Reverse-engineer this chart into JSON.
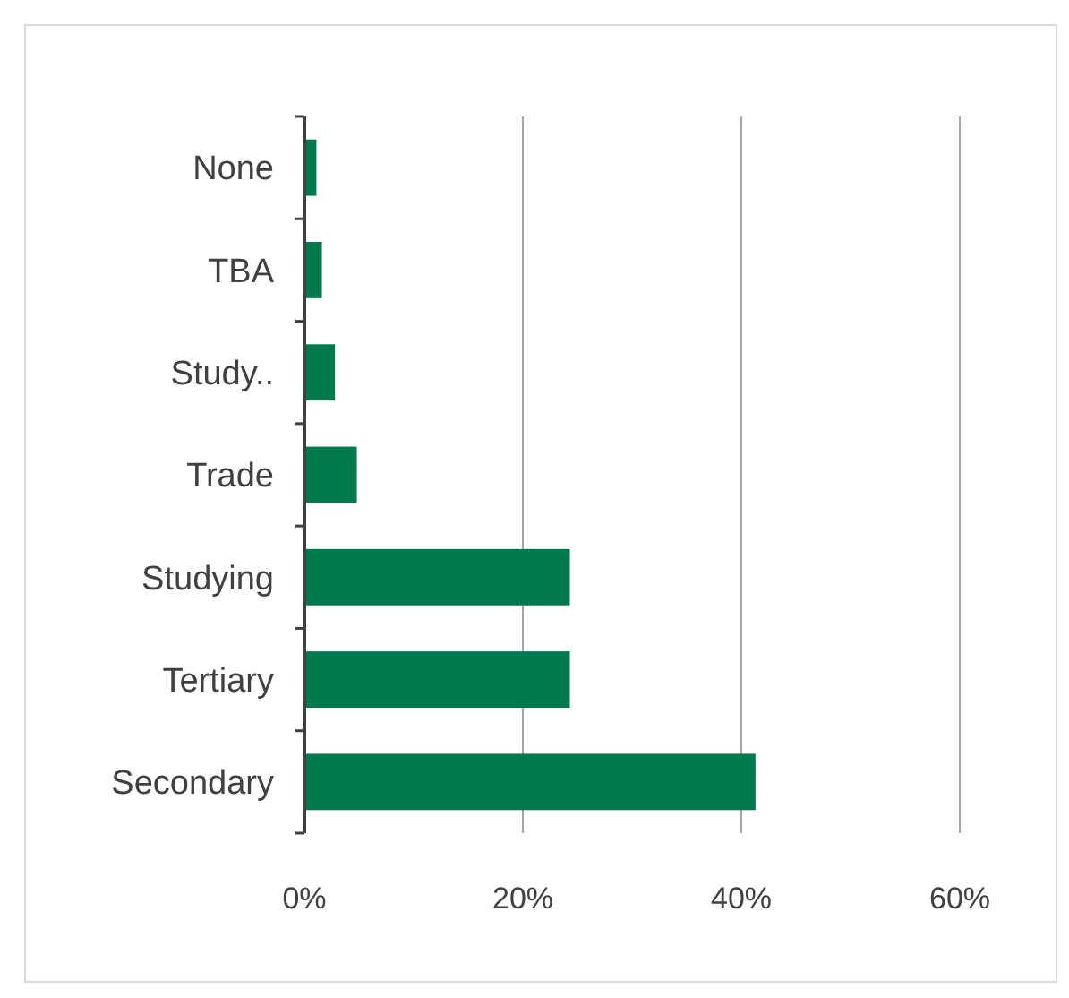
{
  "chart_data": {
    "type": "bar",
    "orientation": "horizontal",
    "categories": [
      "None",
      "TBA",
      "Study..",
      "Trade",
      "Studying",
      "Tertiary",
      "Secondary"
    ],
    "values": [
      1.1,
      1.6,
      2.8,
      4.8,
      24.3,
      24.3,
      41.3
    ],
    "color": "#007a4d",
    "xlim": [
      0,
      60
    ],
    "xticks": [
      {
        "value": 0,
        "label": "0%"
      },
      {
        "value": 20,
        "label": "20%"
      },
      {
        "value": 40,
        "label": "40%"
      },
      {
        "value": 60,
        "label": "60%"
      }
    ],
    "grid": "x"
  }
}
